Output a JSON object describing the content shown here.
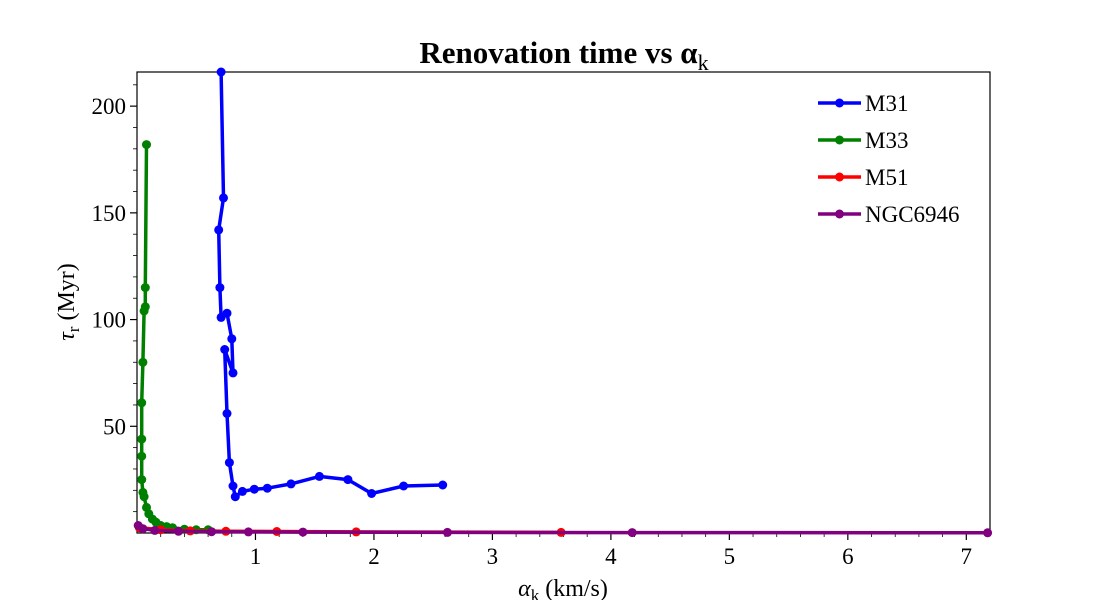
{
  "chart_data": {
    "type": "line",
    "title": "Renovation time vs α",
    "title_subscript": "k",
    "xlabel": "α",
    "xlabel_subscript": "k",
    "xlabel_unit": " (km/s)",
    "ylabel": "τ",
    "ylabel_subscript": "r",
    "ylabel_unit": " (Myr)",
    "xlim": [
      0,
      7.2
    ],
    "ylim": [
      0,
      216
    ],
    "xticks": [
      1,
      2,
      3,
      4,
      5,
      6,
      7
    ],
    "yticks": [
      50,
      100,
      150,
      200
    ],
    "grid": false,
    "legend_position": "top-right",
    "series": [
      {
        "name": "M31",
        "color": "#0000ff",
        "points": [
          [
            2.58,
            22.5
          ],
          [
            2.25,
            22
          ],
          [
            1.98,
            18.5
          ],
          [
            1.78,
            25
          ],
          [
            1.54,
            26.5
          ],
          [
            1.3,
            23
          ],
          [
            1.1,
            21
          ],
          [
            0.99,
            20.5
          ],
          [
            0.89,
            19.5
          ],
          [
            0.83,
            17
          ],
          [
            0.81,
            22
          ],
          [
            0.78,
            33
          ],
          [
            0.76,
            56
          ],
          [
            0.74,
            86
          ],
          [
            0.81,
            75
          ],
          [
            0.8,
            91
          ],
          [
            0.76,
            103
          ],
          [
            0.71,
            101
          ],
          [
            0.7,
            115
          ],
          [
            0.69,
            142
          ],
          [
            0.73,
            157
          ],
          [
            0.71,
            216
          ]
        ]
      },
      {
        "name": "M33",
        "color": "#008000",
        "points": [
          [
            0.08,
            182
          ],
          [
            0.07,
            115
          ],
          [
            0.07,
            106
          ],
          [
            0.06,
            104
          ],
          [
            0.05,
            80
          ],
          [
            0.04,
            61
          ],
          [
            0.04,
            44
          ],
          [
            0.04,
            36
          ],
          [
            0.04,
            25
          ],
          [
            0.05,
            19
          ],
          [
            0.06,
            17
          ],
          [
            0.08,
            12
          ],
          [
            0.1,
            9
          ],
          [
            0.13,
            6.5
          ],
          [
            0.16,
            5
          ],
          [
            0.2,
            3.5
          ],
          [
            0.25,
            3
          ],
          [
            0.3,
            2.5
          ],
          [
            0.4,
            1.8
          ],
          [
            0.5,
            1.5
          ],
          [
            0.6,
            1.5
          ]
        ]
      },
      {
        "name": "M51",
        "color": "#ff0000",
        "points": [
          [
            0.02,
            2.5
          ],
          [
            0.2,
            1.5
          ],
          [
            0.45,
            1
          ],
          [
            0.75,
            0.8
          ],
          [
            1.18,
            0.7
          ],
          [
            1.85,
            0.5
          ],
          [
            3.58,
            0.3
          ]
        ]
      },
      {
        "name": "NGC6946",
        "color": "#800080",
        "points": [
          [
            0.01,
            3.5
          ],
          [
            0.05,
            2
          ],
          [
            0.15,
            1.2
          ],
          [
            0.35,
            0.8
          ],
          [
            0.63,
            0.6
          ],
          [
            0.94,
            0.5
          ],
          [
            1.4,
            0.4
          ],
          [
            2.62,
            0.3
          ],
          [
            4.18,
            0.2
          ],
          [
            7.18,
            0.1
          ]
        ]
      }
    ]
  }
}
